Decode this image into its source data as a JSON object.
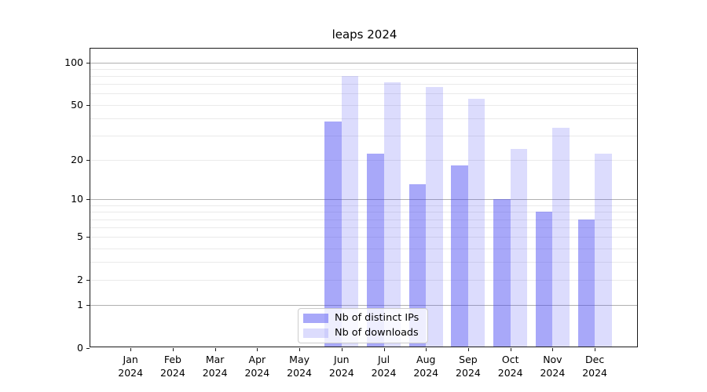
{
  "title": "leaps 2024",
  "chart_data": {
    "type": "bar",
    "title": "leaps 2024",
    "categories": [
      "Jan",
      "Feb",
      "Mar",
      "Apr",
      "May",
      "Jun",
      "Jul",
      "Aug",
      "Sep",
      "Oct",
      "Nov",
      "Dec"
    ],
    "category_year": "2024",
    "series": [
      {
        "name": "Nb of distinct IPs",
        "color": "rgba(70,70,242,0.47)",
        "values": [
          0,
          0,
          0,
          0,
          0,
          38,
          22,
          13,
          18,
          10,
          8,
          7
        ]
      },
      {
        "name": "Nb of downloads",
        "color": "rgba(70,70,242,0.19)",
        "values": [
          0,
          0,
          0,
          0,
          0,
          80,
          72,
          67,
          55,
          24,
          34,
          22
        ]
      }
    ],
    "yscale": "log1p",
    "ylim": [
      0,
      128
    ],
    "ytick_values": [
      0,
      1,
      2,
      5,
      10,
      20,
      50,
      100
    ],
    "ytick_labels": [
      "0",
      "1",
      "2",
      "5",
      "10",
      "20",
      "50",
      "100"
    ],
    "grid_minor_values": [
      2,
      3,
      4,
      5,
      6,
      7,
      8,
      9,
      20,
      30,
      40,
      50,
      60,
      70,
      80,
      90
    ],
    "grid_major_values": [
      1,
      10,
      100
    ],
    "grid": true,
    "legend_position": "bottom-center-right"
  },
  "colors": {
    "bar_base": "#4646f2",
    "grid_minor": "#eaeaea",
    "grid_major": "#b0b0b0",
    "axis": "#1a1a1a",
    "legend_border": "#cccccc"
  }
}
